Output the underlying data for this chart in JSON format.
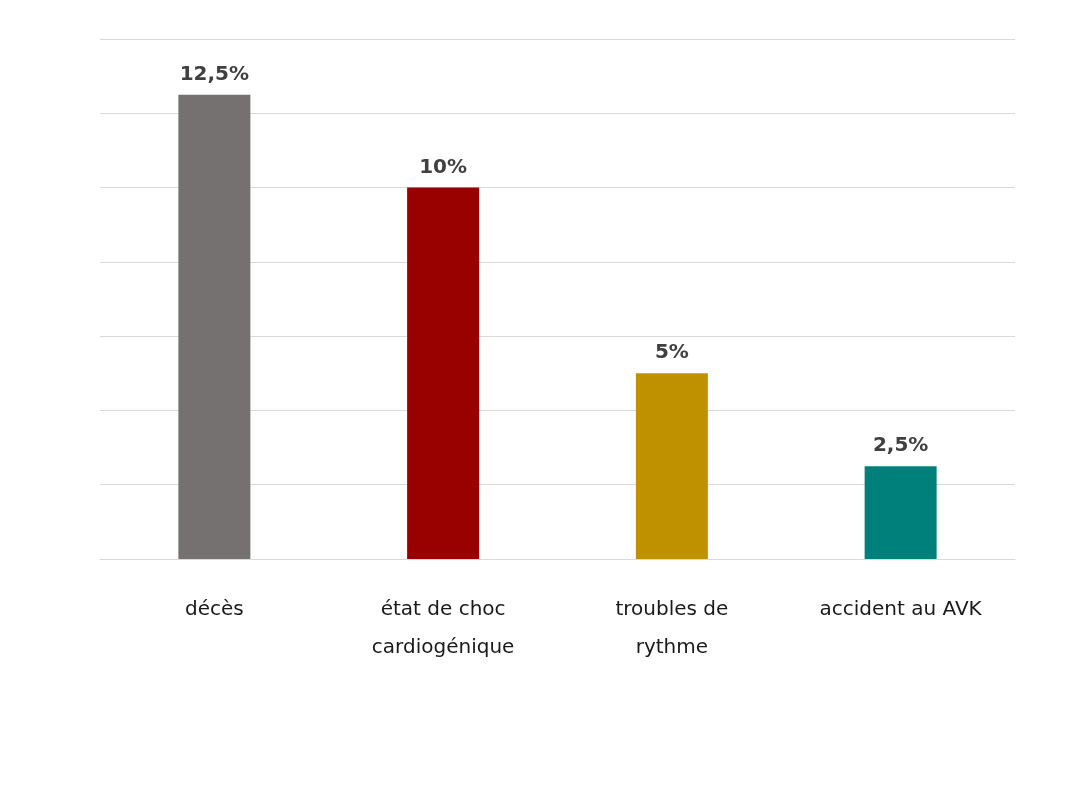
{
  "chart_data": {
    "type": "bar",
    "categories": [
      "décès",
      "état de choc\ncardiogénique",
      "troubles de\nrythme",
      "accident au AVK"
    ],
    "values": [
      12.5,
      10,
      5,
      2.5
    ],
    "colors": [
      "#767171",
      "#990000",
      "#bf9000",
      "#00807a"
    ],
    "value_labels": [
      "12,5%",
      "10%",
      "5%",
      "2,5%"
    ],
    "ylim": [
      0,
      14
    ],
    "yticks": [
      {
        "value": 0,
        "label": null
      },
      {
        "value": 2,
        "label": null
      },
      {
        "value": 4,
        "label": null
      },
      {
        "value": 6,
        "label": null
      },
      {
        "value": 8,
        "label": null
      },
      {
        "value": 10,
        "label": null
      },
      {
        "value": 12,
        "label": null
      },
      {
        "value": 14,
        "label": null
      }
    ],
    "tick_labels": "x",
    "grid": "y"
  }
}
